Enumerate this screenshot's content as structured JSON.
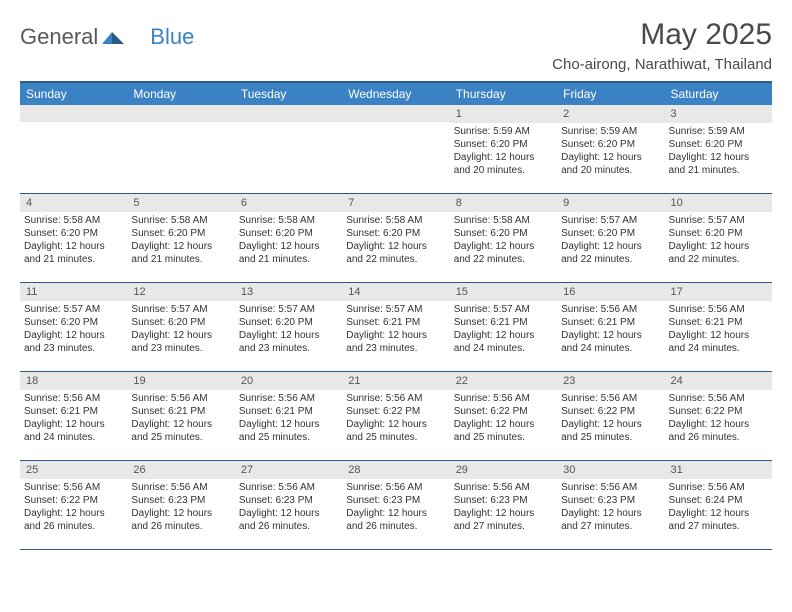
{
  "logo": {
    "part1": "General",
    "part2": "Blue"
  },
  "title": "May 2025",
  "location": "Cho-airong, Narathiwat, Thailand",
  "dows": [
    "Sunday",
    "Monday",
    "Tuesday",
    "Wednesday",
    "Thursday",
    "Friday",
    "Saturday"
  ],
  "colors": {
    "header_bg": "#3b82c4",
    "border": "#2a5a8a",
    "daynum_bg": "#e8e8e8",
    "text": "#333333"
  },
  "weeks": [
    [
      {
        "n": "",
        "sr": "",
        "ss": "",
        "dl": ""
      },
      {
        "n": "",
        "sr": "",
        "ss": "",
        "dl": ""
      },
      {
        "n": "",
        "sr": "",
        "ss": "",
        "dl": ""
      },
      {
        "n": "",
        "sr": "",
        "ss": "",
        "dl": ""
      },
      {
        "n": "1",
        "sr": "5:59 AM",
        "ss": "6:20 PM",
        "dl": "12 hours and 20 minutes."
      },
      {
        "n": "2",
        "sr": "5:59 AM",
        "ss": "6:20 PM",
        "dl": "12 hours and 20 minutes."
      },
      {
        "n": "3",
        "sr": "5:59 AM",
        "ss": "6:20 PM",
        "dl": "12 hours and 21 minutes."
      }
    ],
    [
      {
        "n": "4",
        "sr": "5:58 AM",
        "ss": "6:20 PM",
        "dl": "12 hours and 21 minutes."
      },
      {
        "n": "5",
        "sr": "5:58 AM",
        "ss": "6:20 PM",
        "dl": "12 hours and 21 minutes."
      },
      {
        "n": "6",
        "sr": "5:58 AM",
        "ss": "6:20 PM",
        "dl": "12 hours and 21 minutes."
      },
      {
        "n": "7",
        "sr": "5:58 AM",
        "ss": "6:20 PM",
        "dl": "12 hours and 22 minutes."
      },
      {
        "n": "8",
        "sr": "5:58 AM",
        "ss": "6:20 PM",
        "dl": "12 hours and 22 minutes."
      },
      {
        "n": "9",
        "sr": "5:57 AM",
        "ss": "6:20 PM",
        "dl": "12 hours and 22 minutes."
      },
      {
        "n": "10",
        "sr": "5:57 AM",
        "ss": "6:20 PM",
        "dl": "12 hours and 22 minutes."
      }
    ],
    [
      {
        "n": "11",
        "sr": "5:57 AM",
        "ss": "6:20 PM",
        "dl": "12 hours and 23 minutes."
      },
      {
        "n": "12",
        "sr": "5:57 AM",
        "ss": "6:20 PM",
        "dl": "12 hours and 23 minutes."
      },
      {
        "n": "13",
        "sr": "5:57 AM",
        "ss": "6:20 PM",
        "dl": "12 hours and 23 minutes."
      },
      {
        "n": "14",
        "sr": "5:57 AM",
        "ss": "6:21 PM",
        "dl": "12 hours and 23 minutes."
      },
      {
        "n": "15",
        "sr": "5:57 AM",
        "ss": "6:21 PM",
        "dl": "12 hours and 24 minutes."
      },
      {
        "n": "16",
        "sr": "5:56 AM",
        "ss": "6:21 PM",
        "dl": "12 hours and 24 minutes."
      },
      {
        "n": "17",
        "sr": "5:56 AM",
        "ss": "6:21 PM",
        "dl": "12 hours and 24 minutes."
      }
    ],
    [
      {
        "n": "18",
        "sr": "5:56 AM",
        "ss": "6:21 PM",
        "dl": "12 hours and 24 minutes."
      },
      {
        "n": "19",
        "sr": "5:56 AM",
        "ss": "6:21 PM",
        "dl": "12 hours and 25 minutes."
      },
      {
        "n": "20",
        "sr": "5:56 AM",
        "ss": "6:21 PM",
        "dl": "12 hours and 25 minutes."
      },
      {
        "n": "21",
        "sr": "5:56 AM",
        "ss": "6:22 PM",
        "dl": "12 hours and 25 minutes."
      },
      {
        "n": "22",
        "sr": "5:56 AM",
        "ss": "6:22 PM",
        "dl": "12 hours and 25 minutes."
      },
      {
        "n": "23",
        "sr": "5:56 AM",
        "ss": "6:22 PM",
        "dl": "12 hours and 25 minutes."
      },
      {
        "n": "24",
        "sr": "5:56 AM",
        "ss": "6:22 PM",
        "dl": "12 hours and 26 minutes."
      }
    ],
    [
      {
        "n": "25",
        "sr": "5:56 AM",
        "ss": "6:22 PM",
        "dl": "12 hours and 26 minutes."
      },
      {
        "n": "26",
        "sr": "5:56 AM",
        "ss": "6:23 PM",
        "dl": "12 hours and 26 minutes."
      },
      {
        "n": "27",
        "sr": "5:56 AM",
        "ss": "6:23 PM",
        "dl": "12 hours and 26 minutes."
      },
      {
        "n": "28",
        "sr": "5:56 AM",
        "ss": "6:23 PM",
        "dl": "12 hours and 26 minutes."
      },
      {
        "n": "29",
        "sr": "5:56 AM",
        "ss": "6:23 PM",
        "dl": "12 hours and 27 minutes."
      },
      {
        "n": "30",
        "sr": "5:56 AM",
        "ss": "6:23 PM",
        "dl": "12 hours and 27 minutes."
      },
      {
        "n": "31",
        "sr": "5:56 AM",
        "ss": "6:24 PM",
        "dl": "12 hours and 27 minutes."
      }
    ]
  ],
  "labels": {
    "sunrise": "Sunrise:",
    "sunset": "Sunset:",
    "daylight": "Daylight:"
  }
}
